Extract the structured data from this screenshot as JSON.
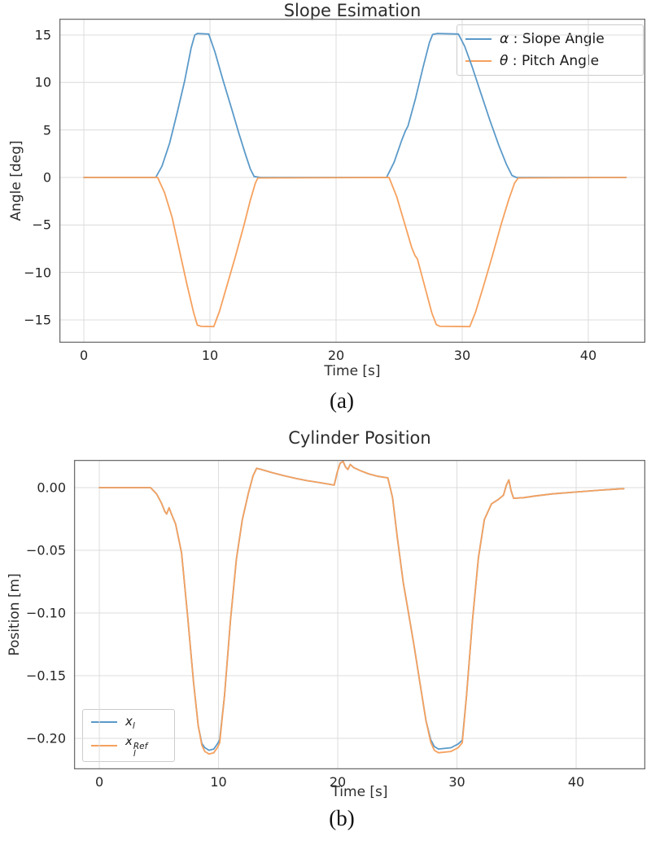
{
  "captions": {
    "a": "(a)",
    "b": "(b)"
  },
  "chart_data": [
    {
      "type": "line",
      "title": "Slope Esimation",
      "xlabel": "Time [s]",
      "ylabel": "Angle [deg]",
      "xlim": [
        -1.94,
        44.52
      ],
      "ylim": [
        -17.4,
        16.71
      ],
      "grid": true,
      "legend_position": "upper right",
      "frame_color": "#6f6f6f",
      "grid_color": "#dcdcdc",
      "xticks": {
        "values": [
          0,
          10,
          20,
          30,
          40
        ],
        "labels": [
          "0",
          "10",
          "20",
          "30",
          "40"
        ]
      },
      "yticks": {
        "values": [
          15,
          10,
          5,
          0,
          -5,
          -10,
          -15
        ],
        "labels": [
          "15",
          "10",
          "5",
          "0",
          "−5",
          "−10",
          "−15"
        ]
      },
      "series": [
        {
          "name": "alpha-slope-angle",
          "legend": {
            "symbol": "α",
            "rest": " : Slope Angle"
          },
          "color": "#5b9ac9",
          "points": [
            [
              0,
              0
            ],
            [
              5.7,
              0
            ],
            [
              6.2,
              1.2
            ],
            [
              6.8,
              3.6
            ],
            [
              7.4,
              6.8
            ],
            [
              8.0,
              10.2
            ],
            [
              8.5,
              13.6
            ],
            [
              8.8,
              15.0
            ],
            [
              9.0,
              15.15
            ],
            [
              9.9,
              15.1
            ],
            [
              10.4,
              13.2
            ],
            [
              11.0,
              10.4
            ],
            [
              11.7,
              7.3
            ],
            [
              12.3,
              4.6
            ],
            [
              12.8,
              2.5
            ],
            [
              13.2,
              0.9
            ],
            [
              13.5,
              0.1
            ],
            [
              14.0,
              0
            ],
            [
              24.0,
              0
            ],
            [
              24.6,
              1.6
            ],
            [
              25.2,
              3.9
            ],
            [
              25.5,
              4.9
            ],
            [
              25.7,
              5.4
            ],
            [
              26.3,
              8.3
            ],
            [
              26.9,
              11.6
            ],
            [
              27.4,
              14.2
            ],
            [
              27.65,
              15.05
            ],
            [
              28.0,
              15.15
            ],
            [
              29.7,
              15.1
            ],
            [
              30.2,
              13.8
            ],
            [
              30.8,
              11.6
            ],
            [
              31.5,
              8.8
            ],
            [
              32.2,
              6.0
            ],
            [
              32.9,
              3.4
            ],
            [
              33.5,
              1.4
            ],
            [
              33.95,
              0.2
            ],
            [
              34.3,
              0
            ],
            [
              43.0,
              0
            ]
          ]
        },
        {
          "name": "theta-pitch-angle",
          "legend": {
            "symbol": "θ",
            "rest": " : Pitch Angle"
          },
          "color": "#f6a15e",
          "points": [
            [
              0,
              0
            ],
            [
              5.85,
              0
            ],
            [
              6.4,
              -1.6
            ],
            [
              7.0,
              -4.2
            ],
            [
              7.6,
              -7.8
            ],
            [
              8.2,
              -11.4
            ],
            [
              8.7,
              -14.2
            ],
            [
              9.0,
              -15.55
            ],
            [
              9.3,
              -15.68
            ],
            [
              10.3,
              -15.7
            ],
            [
              10.75,
              -14.1
            ],
            [
              11.3,
              -11.6
            ],
            [
              12.0,
              -8.4
            ],
            [
              12.7,
              -5.0
            ],
            [
              13.2,
              -2.4
            ],
            [
              13.6,
              -0.6
            ],
            [
              13.8,
              -0.05
            ],
            [
              24.2,
              0
            ],
            [
              24.8,
              -2.0
            ],
            [
              25.4,
              -4.7
            ],
            [
              26.0,
              -7.4
            ],
            [
              26.25,
              -8.2
            ],
            [
              26.45,
              -8.6
            ],
            [
              27.1,
              -11.8
            ],
            [
              27.6,
              -14.3
            ],
            [
              27.95,
              -15.5
            ],
            [
              28.25,
              -15.68
            ],
            [
              30.6,
              -15.7
            ],
            [
              31.05,
              -14.2
            ],
            [
              31.7,
              -11.4
            ],
            [
              32.4,
              -8.2
            ],
            [
              33.1,
              -4.9
            ],
            [
              33.7,
              -2.3
            ],
            [
              34.15,
              -0.6
            ],
            [
              34.45,
              -0.05
            ],
            [
              43.0,
              0
            ]
          ]
        }
      ]
    },
    {
      "type": "line",
      "title": "Cylinder Position",
      "xlabel": "Time [s]",
      "ylabel": "Position [m]",
      "xlim": [
        -2.12,
        45.8
      ],
      "ylim": [
        -0.2247,
        0.0221
      ],
      "grid": true,
      "legend_position": "lower left",
      "frame_color": "#6f6f6f",
      "grid_color": "#dcdcdc",
      "xticks": {
        "values": [
          0,
          10,
          20,
          30,
          40
        ],
        "labels": [
          "0",
          "10",
          "20",
          "30",
          "40"
        ]
      },
      "yticks": {
        "values": [
          0,
          -0.05,
          -0.1,
          -0.15,
          -0.2
        ],
        "labels": [
          "0.00",
          "−0.05",
          "−0.10",
          "−0.15",
          "−0.20"
        ]
      },
      "series": [
        {
          "name": "x-l",
          "legend": {
            "base": "x",
            "sub": "l",
            "sup": ""
          },
          "color": "#5b9ac9",
          "points": [
            [
              0,
              0
            ],
            [
              4.3,
              0
            ],
            [
              4.8,
              -0.005
            ],
            [
              5.2,
              -0.012
            ],
            [
              5.5,
              -0.019
            ],
            [
              5.65,
              -0.021
            ],
            [
              5.85,
              -0.016
            ],
            [
              6.05,
              -0.021
            ],
            [
              6.4,
              -0.029
            ],
            [
              6.9,
              -0.052
            ],
            [
              7.4,
              -0.102
            ],
            [
              7.9,
              -0.155
            ],
            [
              8.3,
              -0.19
            ],
            [
              8.6,
              -0.204
            ],
            [
              8.85,
              -0.2075
            ],
            [
              9.2,
              -0.2095
            ],
            [
              9.6,
              -0.2085
            ],
            [
              9.9,
              -0.2045
            ],
            [
              10.1,
              -0.201
            ],
            [
              10.5,
              -0.166
            ],
            [
              11.0,
              -0.106
            ],
            [
              11.5,
              -0.057
            ],
            [
              12.0,
              -0.0255
            ],
            [
              12.5,
              -0.0045
            ],
            [
              12.9,
              0.0095
            ],
            [
              13.2,
              0.0155
            ],
            [
              13.6,
              0.0145
            ],
            [
              14.5,
              0.012
            ],
            [
              15.5,
              0.0095
            ],
            [
              16.5,
              0.0073
            ],
            [
              17.5,
              0.0055
            ],
            [
              18.5,
              0.004
            ],
            [
              19.3,
              0.0027
            ],
            [
              19.7,
              0.002
            ],
            [
              19.95,
              0.012
            ],
            [
              20.2,
              0.0195
            ],
            [
              20.45,
              0.021
            ],
            [
              20.65,
              0.0165
            ],
            [
              20.85,
              0.0145
            ],
            [
              21.05,
              0.0185
            ],
            [
              21.35,
              0.016
            ],
            [
              21.9,
              0.0135
            ],
            [
              22.6,
              0.011
            ],
            [
              23.4,
              0.009
            ],
            [
              24.2,
              0.0078
            ],
            [
              24.6,
              -0.008
            ],
            [
              25.0,
              -0.04
            ],
            [
              25.5,
              -0.076
            ],
            [
              25.85,
              -0.095
            ],
            [
              26.4,
              -0.126
            ],
            [
              26.9,
              -0.156
            ],
            [
              27.4,
              -0.186
            ],
            [
              27.8,
              -0.201
            ],
            [
              28.1,
              -0.2065
            ],
            [
              28.45,
              -0.2085
            ],
            [
              29.5,
              -0.2075
            ],
            [
              30.1,
              -0.2045
            ],
            [
              30.45,
              -0.2015
            ],
            [
              30.8,
              -0.166
            ],
            [
              31.3,
              -0.106
            ],
            [
              31.8,
              -0.056
            ],
            [
              32.3,
              -0.0255
            ],
            [
              32.9,
              -0.013
            ],
            [
              33.5,
              -0.0092
            ],
            [
              33.9,
              -0.006
            ],
            [
              34.15,
              0.002
            ],
            [
              34.35,
              0.0062
            ],
            [
              34.55,
              -0.0028
            ],
            [
              34.75,
              -0.0085
            ],
            [
              35.6,
              -0.008
            ],
            [
              36.6,
              -0.0066
            ],
            [
              38.0,
              -0.005
            ],
            [
              40.0,
              -0.0035
            ],
            [
              42.0,
              -0.002
            ],
            [
              43.5,
              -0.0011
            ],
            [
              44.0,
              -0.0008
            ]
          ]
        },
        {
          "name": "x-l-ref",
          "legend": {
            "base": "x",
            "sub": "l",
            "sup": "Ref"
          },
          "color": "#f6a15e",
          "points": [
            [
              0,
              0
            ],
            [
              4.3,
              0
            ],
            [
              4.8,
              -0.005
            ],
            [
              5.2,
              -0.012
            ],
            [
              5.5,
              -0.019
            ],
            [
              5.65,
              -0.021
            ],
            [
              5.85,
              -0.016
            ],
            [
              6.05,
              -0.021
            ],
            [
              6.4,
              -0.029
            ],
            [
              6.9,
              -0.052
            ],
            [
              7.4,
              -0.102
            ],
            [
              7.9,
              -0.155
            ],
            [
              8.3,
              -0.19
            ],
            [
              8.6,
              -0.2055
            ],
            [
              8.85,
              -0.2105
            ],
            [
              9.2,
              -0.2125
            ],
            [
              9.6,
              -0.2115
            ],
            [
              9.9,
              -0.2075
            ],
            [
              10.1,
              -0.2035
            ],
            [
              10.5,
              -0.166
            ],
            [
              11.0,
              -0.106
            ],
            [
              11.5,
              -0.057
            ],
            [
              12.0,
              -0.0255
            ],
            [
              12.5,
              -0.0045
            ],
            [
              12.9,
              0.0095
            ],
            [
              13.2,
              0.0155
            ],
            [
              13.6,
              0.0145
            ],
            [
              14.5,
              0.012
            ],
            [
              15.5,
              0.0095
            ],
            [
              16.5,
              0.0073
            ],
            [
              17.5,
              0.0055
            ],
            [
              18.5,
              0.004
            ],
            [
              19.3,
              0.0027
            ],
            [
              19.7,
              0.002
            ],
            [
              19.95,
              0.012
            ],
            [
              20.2,
              0.0195
            ],
            [
              20.45,
              0.021
            ],
            [
              20.65,
              0.0165
            ],
            [
              20.85,
              0.0145
            ],
            [
              21.05,
              0.0185
            ],
            [
              21.35,
              0.016
            ],
            [
              21.9,
              0.0135
            ],
            [
              22.6,
              0.011
            ],
            [
              23.4,
              0.009
            ],
            [
              24.2,
              0.0078
            ],
            [
              24.6,
              -0.008
            ],
            [
              25.0,
              -0.04
            ],
            [
              25.5,
              -0.076
            ],
            [
              25.85,
              -0.095
            ],
            [
              26.4,
              -0.126
            ],
            [
              26.9,
              -0.156
            ],
            [
              27.4,
              -0.186
            ],
            [
              27.8,
              -0.203
            ],
            [
              28.1,
              -0.2095
            ],
            [
              28.45,
              -0.2115
            ],
            [
              29.5,
              -0.2105
            ],
            [
              30.1,
              -0.2075
            ],
            [
              30.45,
              -0.2035
            ],
            [
              30.8,
              -0.166
            ],
            [
              31.3,
              -0.106
            ],
            [
              31.8,
              -0.056
            ],
            [
              32.3,
              -0.0255
            ],
            [
              32.9,
              -0.013
            ],
            [
              33.5,
              -0.0092
            ],
            [
              33.9,
              -0.006
            ],
            [
              34.15,
              0.002
            ],
            [
              34.35,
              0.0062
            ],
            [
              34.55,
              -0.0028
            ],
            [
              34.75,
              -0.0085
            ],
            [
              35.6,
              -0.008
            ],
            [
              36.6,
              -0.0066
            ],
            [
              38.0,
              -0.005
            ],
            [
              40.0,
              -0.0035
            ],
            [
              42.0,
              -0.002
            ],
            [
              43.5,
              -0.0011
            ],
            [
              44.0,
              -0.0008
            ]
          ]
        }
      ]
    }
  ]
}
